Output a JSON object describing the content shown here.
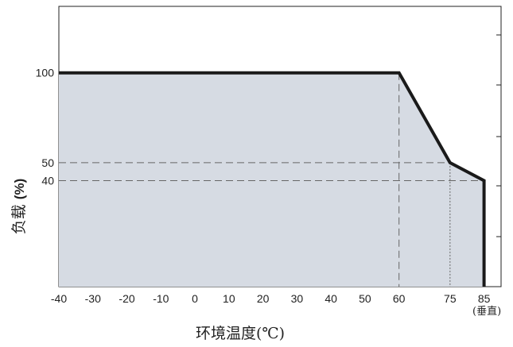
{
  "chart_data": {
    "type": "area",
    "xlabel": "环境温度(℃)",
    "ylabel": "负载",
    "ylabel_unit": "(%)",
    "orientation_note": "(垂直)",
    "x_ticks": [
      "-40",
      "-30",
      "-20",
      "-10",
      "0",
      "10",
      "20",
      "30",
      "40",
      "50",
      "60",
      "75",
      "85"
    ],
    "x_tick_values": [
      -40,
      -30,
      -20,
      -10,
      0,
      10,
      20,
      30,
      40,
      50,
      60,
      75,
      85
    ],
    "y_ticks": [
      "100",
      "50",
      "40"
    ],
    "y_tick_values": [
      100,
      50,
      40
    ],
    "xlim": [
      -40,
      90
    ],
    "ylim": [
      -19,
      137
    ],
    "series": [
      {
        "x": [
          -40,
          60,
          75,
          85,
          85
        ],
        "y": [
          100,
          100,
          50,
          40,
          -19
        ]
      }
    ],
    "guides": [
      {
        "from": [
          -40,
          50
        ],
        "to": [
          75,
          50
        ],
        "style": "dashed"
      },
      {
        "from": [
          -40,
          40
        ],
        "to": [
          85,
          40
        ],
        "style": "dashed"
      },
      {
        "from": [
          60,
          100
        ],
        "to": [
          60,
          -19
        ],
        "style": "dashed"
      },
      {
        "from": [
          75,
          50
        ],
        "to": [
          75,
          -19
        ],
        "style": "dotted"
      }
    ],
    "colors": {
      "fill": "#d6dbe3",
      "line": "#1a1a1a",
      "guide": "#666666"
    }
  }
}
